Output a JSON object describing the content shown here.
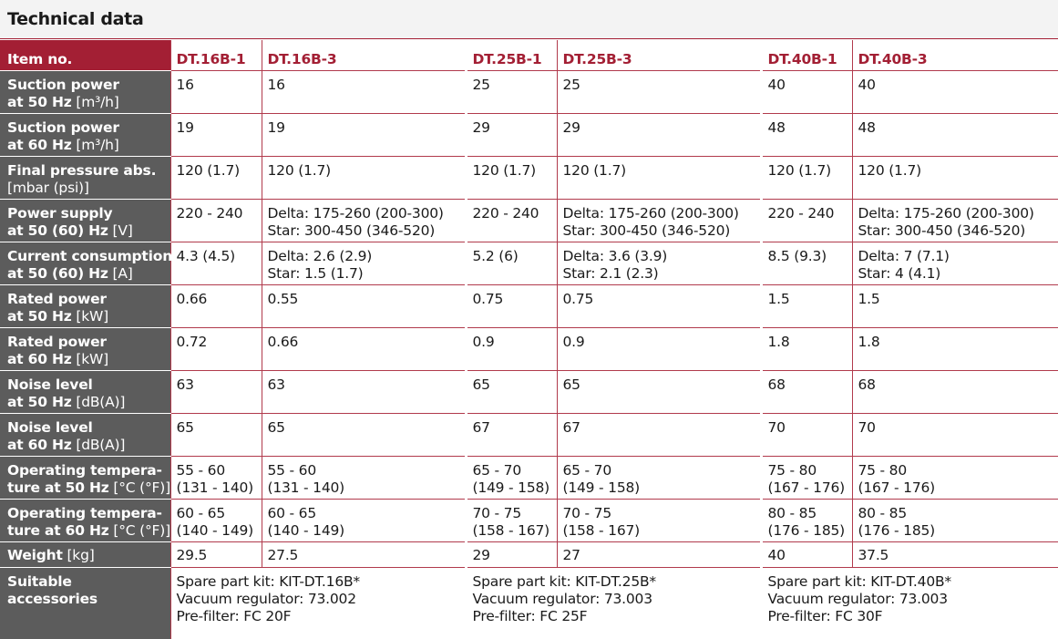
{
  "title": "Technical data",
  "header": {
    "label": "Item no.",
    "models": [
      "DT.16B-1",
      "DT.16B-3",
      "DT.25B-1",
      "DT.25B-3",
      "DT.40B-1",
      "DT.40B-3"
    ]
  },
  "rows": [
    {
      "label1": "Suction power",
      "label2b": "at 50 Hz",
      "unit": "[m³/h]",
      "values": [
        [
          "16"
        ],
        [
          "16"
        ],
        [
          "25"
        ],
        [
          "25"
        ],
        [
          "40"
        ],
        [
          "40"
        ]
      ]
    },
    {
      "label1": "Suction power",
      "label2b": "at 60 Hz",
      "unit": "[m³/h]",
      "values": [
        [
          "19"
        ],
        [
          "19"
        ],
        [
          "29"
        ],
        [
          "29"
        ],
        [
          "48"
        ],
        [
          "48"
        ]
      ]
    },
    {
      "label1": "Final pressure abs.",
      "label2b": "",
      "unit": "[mbar (psi)]",
      "values": [
        [
          "120 (1.7)"
        ],
        [
          "120 (1.7)"
        ],
        [
          "120 (1.7)"
        ],
        [
          "120 (1.7)"
        ],
        [
          "120 (1.7)"
        ],
        [
          "120 (1.7)"
        ]
      ]
    },
    {
      "label1": "Power supply",
      "label2b": "at 50 (60) Hz",
      "unit": "[V]",
      "values": [
        [
          "220 - 240"
        ],
        [
          "Delta: 175-260 (200-300)",
          "Star: 300-450 (346-520)"
        ],
        [
          "220 - 240"
        ],
        [
          "Delta: 175-260 (200-300)",
          "Star: 300-450 (346-520)"
        ],
        [
          "220 - 240"
        ],
        [
          "Delta: 175-260 (200-300)",
          "Star: 300-450 (346-520)"
        ]
      ]
    },
    {
      "label1": "Current consumption",
      "label2b": "at 50 (60) Hz",
      "unit": "[A]",
      "values": [
        [
          "4.3 (4.5)"
        ],
        [
          "Delta: 2.6 (2.9)",
          "Star: 1.5 (1.7)"
        ],
        [
          "5.2 (6)"
        ],
        [
          "Delta: 3.6 (3.9)",
          "Star: 2.1 (2.3)"
        ],
        [
          "8.5 (9.3)"
        ],
        [
          "Delta: 7 (7.1)",
          "Star: 4 (4.1)"
        ]
      ]
    },
    {
      "label1": "Rated power",
      "label2b": "at 50 Hz",
      "unit": "[kW]",
      "values": [
        [
          "0.66"
        ],
        [
          "0.55"
        ],
        [
          "0.75"
        ],
        [
          "0.75"
        ],
        [
          "1.5"
        ],
        [
          "1.5"
        ]
      ]
    },
    {
      "label1": "Rated power",
      "label2b": "at 60 Hz",
      "unit": "[kW]",
      "values": [
        [
          "0.72"
        ],
        [
          "0.66"
        ],
        [
          "0.9"
        ],
        [
          "0.9"
        ],
        [
          "1.8"
        ],
        [
          "1.8"
        ]
      ]
    },
    {
      "label1": "Noise level",
      "label2b": "at 50 Hz",
      "unit": "[dB(A)]",
      "values": [
        [
          "63"
        ],
        [
          "63"
        ],
        [
          "65"
        ],
        [
          "65"
        ],
        [
          "68"
        ],
        [
          "68"
        ]
      ]
    },
    {
      "label1": "Noise level",
      "label2b": "at 60 Hz",
      "unit": "[dB(A)]",
      "values": [
        [
          "65"
        ],
        [
          "65"
        ],
        [
          "67"
        ],
        [
          "67"
        ],
        [
          "70"
        ],
        [
          "70"
        ]
      ]
    },
    {
      "label1": "Operating tempera-",
      "label2b": "ture at 50 Hz",
      "unit": "[°C (°F)]",
      "values": [
        [
          "55 - 60",
          "(131 - 140)"
        ],
        [
          "55 - 60",
          "(131 - 140)"
        ],
        [
          "65 - 70",
          "(149 - 158)"
        ],
        [
          "65 - 70",
          "(149 - 158)"
        ],
        [
          "75 - 80",
          "(167 - 176)"
        ],
        [
          "75 - 80",
          "(167 - 176)"
        ]
      ]
    },
    {
      "label1": "Operating tempera-",
      "label2b": "ture at 60 Hz",
      "unit": "[°C (°F)]",
      "values": [
        [
          "60 - 65",
          "(140 - 149)"
        ],
        [
          "60 - 65",
          "(140 - 149)"
        ],
        [
          "70 - 75",
          "(158 - 167)"
        ],
        [
          "70 - 75",
          "(158 - 167)"
        ],
        [
          "80 - 85",
          "(176 - 185)"
        ],
        [
          "80 - 85",
          "(176 - 185)"
        ]
      ]
    }
  ],
  "weight": {
    "label": "Weight",
    "unit": "[kg]",
    "values": [
      "29.5",
      "27.5",
      "29",
      "27",
      "40",
      "37.5"
    ]
  },
  "accessories": {
    "label1": "Suitable",
    "label2": "accessories",
    "groups": [
      [
        "Spare part kit: KIT-DT.16B*",
        "Vacuum regulator: 73.002",
        "Pre-filter: FC 20F"
      ],
      [
        "Spare part kit: KIT-DT.25B*",
        "Vacuum regulator: 73.003",
        "Pre-filter: FC 25F"
      ],
      [
        "Spare part kit: KIT-DT.40B*",
        "Vacuum regulator: 73.003",
        "Pre-filter: FC 30F"
      ]
    ]
  }
}
